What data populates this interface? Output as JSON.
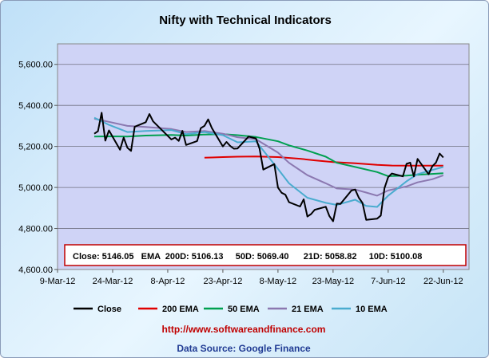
{
  "chart_data": {
    "type": "line",
    "title": "Nifty with Technical Indicators",
    "xlabel": "",
    "ylabel": "",
    "ylim": [
      4600,
      5700
    ],
    "yticks": [
      "4,600.00",
      "4,800.00",
      "5,000.00",
      "5,200.00",
      "5,400.00",
      "5,600.00"
    ],
    "y_tick_values": [
      4600,
      4800,
      5000,
      5200,
      5400,
      5600
    ],
    "xlim": [
      "2012-03-09",
      "2012-06-29"
    ],
    "x_tick_labels": [
      "9-Mar-12",
      "24-Mar-12",
      "8-Apr-12",
      "23-Apr-12",
      "8-May-12",
      "23-May-12",
      "7-Jun-12",
      "22-Jun-12"
    ],
    "x_tick_dates": [
      "2012-03-09",
      "2012-03-24",
      "2012-04-08",
      "2012-04-23",
      "2012-05-08",
      "2012-05-23",
      "2012-06-07",
      "2012-06-22"
    ],
    "gridlines": "horizontal",
    "legend_position": "bottom",
    "series": [
      {
        "name": "Close",
        "color": "#000000",
        "points": [
          [
            "2012-03-19",
            5262
          ],
          [
            "2012-03-20",
            5274
          ],
          [
            "2012-03-21",
            5364
          ],
          [
            "2012-03-22",
            5228
          ],
          [
            "2012-03-23",
            5278
          ],
          [
            "2012-03-26",
            5184
          ],
          [
            "2012-03-27",
            5243
          ],
          [
            "2012-03-28",
            5194
          ],
          [
            "2012-03-29",
            5178
          ],
          [
            "2012-03-30",
            5296
          ],
          [
            "2012-04-02",
            5318
          ],
          [
            "2012-04-03",
            5358
          ],
          [
            "2012-04-04",
            5322
          ],
          [
            "2012-04-09",
            5234
          ],
          [
            "2012-04-10",
            5243
          ],
          [
            "2012-04-11",
            5227
          ],
          [
            "2012-04-12",
            5276
          ],
          [
            "2012-04-13",
            5207
          ],
          [
            "2012-04-16",
            5226
          ],
          [
            "2012-04-17",
            5289
          ],
          [
            "2012-04-18",
            5300
          ],
          [
            "2012-04-19",
            5332
          ],
          [
            "2012-04-20",
            5290
          ],
          [
            "2012-04-23",
            5200
          ],
          [
            "2012-04-24",
            5222
          ],
          [
            "2012-04-25",
            5202
          ],
          [
            "2012-04-26",
            5189
          ],
          [
            "2012-04-27",
            5190
          ],
          [
            "2012-04-30",
            5248
          ],
          [
            "2012-05-02",
            5239
          ],
          [
            "2012-05-03",
            5188
          ],
          [
            "2012-05-04",
            5087
          ],
          [
            "2012-05-07",
            5114
          ],
          [
            "2012-05-08",
            4999
          ],
          [
            "2012-05-09",
            4974
          ],
          [
            "2012-05-10",
            4965
          ],
          [
            "2012-05-11",
            4928
          ],
          [
            "2012-05-14",
            4907
          ],
          [
            "2012-05-15",
            4942
          ],
          [
            "2012-05-16",
            4858
          ],
          [
            "2012-05-17",
            4870
          ],
          [
            "2012-05-18",
            4891
          ],
          [
            "2012-05-21",
            4906
          ],
          [
            "2012-05-22",
            4860
          ],
          [
            "2012-05-23",
            4835
          ],
          [
            "2012-05-24",
            4921
          ],
          [
            "2012-05-25",
            4920
          ],
          [
            "2012-05-28",
            4985
          ],
          [
            "2012-05-29",
            4990
          ],
          [
            "2012-05-30",
            4950
          ],
          [
            "2012-05-31",
            4924
          ],
          [
            "2012-06-01",
            4842
          ],
          [
            "2012-06-04",
            4848
          ],
          [
            "2012-06-05",
            4863
          ],
          [
            "2012-06-06",
            4997
          ],
          [
            "2012-06-07",
            5050
          ],
          [
            "2012-06-08",
            5068
          ],
          [
            "2012-06-11",
            5054
          ],
          [
            "2012-06-12",
            5115
          ],
          [
            "2012-06-13",
            5121
          ],
          [
            "2012-06-14",
            5054
          ],
          [
            "2012-06-15",
            5139
          ],
          [
            "2012-06-18",
            5064
          ],
          [
            "2012-06-19",
            5103
          ],
          [
            "2012-06-20",
            5121
          ],
          [
            "2012-06-21",
            5165
          ],
          [
            "2012-06-22",
            5146
          ]
        ]
      },
      {
        "name": "200 EMA",
        "color": "#e00000",
        "points": [
          [
            "2012-04-18",
            5145
          ],
          [
            "2012-04-20",
            5146
          ],
          [
            "2012-04-23",
            5148
          ],
          [
            "2012-04-27",
            5150
          ],
          [
            "2012-05-02",
            5151
          ],
          [
            "2012-05-04",
            5150
          ],
          [
            "2012-05-08",
            5148
          ],
          [
            "2012-05-14",
            5140
          ],
          [
            "2012-05-18",
            5132
          ],
          [
            "2012-05-23",
            5124
          ],
          [
            "2012-05-29",
            5118
          ],
          [
            "2012-06-04",
            5110
          ],
          [
            "2012-06-08",
            5107
          ],
          [
            "2012-06-13",
            5106
          ],
          [
            "2012-06-18",
            5106
          ],
          [
            "2012-06-22",
            5106
          ]
        ]
      },
      {
        "name": "50 EMA",
        "color": "#00a050",
        "points": [
          [
            "2012-03-19",
            5248
          ],
          [
            "2012-03-23",
            5249
          ],
          [
            "2012-03-28",
            5248
          ],
          [
            "2012-04-02",
            5253
          ],
          [
            "2012-04-09",
            5256
          ],
          [
            "2012-04-13",
            5253
          ],
          [
            "2012-04-18",
            5258
          ],
          [
            "2012-04-23",
            5260
          ],
          [
            "2012-04-27",
            5255
          ],
          [
            "2012-05-02",
            5246
          ],
          [
            "2012-05-08",
            5225
          ],
          [
            "2012-05-11",
            5205
          ],
          [
            "2012-05-16",
            5180
          ],
          [
            "2012-05-21",
            5150
          ],
          [
            "2012-05-24",
            5120
          ],
          [
            "2012-05-29",
            5100
          ],
          [
            "2012-06-04",
            5075
          ],
          [
            "2012-06-07",
            5055
          ],
          [
            "2012-06-12",
            5058
          ],
          [
            "2012-06-15",
            5062
          ],
          [
            "2012-06-19",
            5066
          ],
          [
            "2012-06-22",
            5069
          ]
        ]
      },
      {
        "name": "21 EMA",
        "color": "#8b78b0",
        "points": [
          [
            "2012-03-19",
            5335
          ],
          [
            "2012-03-23",
            5320
          ],
          [
            "2012-03-28",
            5300
          ],
          [
            "2012-04-02",
            5295
          ],
          [
            "2012-04-09",
            5285
          ],
          [
            "2012-04-13",
            5270
          ],
          [
            "2012-04-18",
            5275
          ],
          [
            "2012-04-23",
            5262
          ],
          [
            "2012-04-27",
            5245
          ],
          [
            "2012-05-02",
            5235
          ],
          [
            "2012-05-08",
            5170
          ],
          [
            "2012-05-11",
            5120
          ],
          [
            "2012-05-16",
            5060
          ],
          [
            "2012-05-21",
            5020
          ],
          [
            "2012-05-24",
            4995
          ],
          [
            "2012-05-29",
            4990
          ],
          [
            "2012-06-01",
            4975
          ],
          [
            "2012-06-04",
            4960
          ],
          [
            "2012-06-07",
            4985
          ],
          [
            "2012-06-12",
            5005
          ],
          [
            "2012-06-15",
            5025
          ],
          [
            "2012-06-19",
            5040
          ],
          [
            "2012-06-22",
            5059
          ]
        ]
      },
      {
        "name": "10 EMA",
        "color": "#4aaccf",
        "points": [
          [
            "2012-03-19",
            5340
          ],
          [
            "2012-03-23",
            5305
          ],
          [
            "2012-03-28",
            5270
          ],
          [
            "2012-04-02",
            5275
          ],
          [
            "2012-04-09",
            5280
          ],
          [
            "2012-04-13",
            5260
          ],
          [
            "2012-04-18",
            5270
          ],
          [
            "2012-04-23",
            5255
          ],
          [
            "2012-04-27",
            5220
          ],
          [
            "2012-05-02",
            5225
          ],
          [
            "2012-05-04",
            5180
          ],
          [
            "2012-05-08",
            5090
          ],
          [
            "2012-05-11",
            5020
          ],
          [
            "2012-05-16",
            4950
          ],
          [
            "2012-05-21",
            4925
          ],
          [
            "2012-05-24",
            4915
          ],
          [
            "2012-05-29",
            4940
          ],
          [
            "2012-06-01",
            4910
          ],
          [
            "2012-06-04",
            4905
          ],
          [
            "2012-06-07",
            4960
          ],
          [
            "2012-06-12",
            5030
          ],
          [
            "2012-06-15",
            5065
          ],
          [
            "2012-06-19",
            5085
          ],
          [
            "2012-06-22",
            5100
          ]
        ]
      }
    ],
    "summary_box": "Close: 5146.05   EMA  200D: 5106.13     50D: 5069.40      21D: 5058.82     10D: 5100.08",
    "footer_url": "http://www.softwareandfinance.com",
    "footer_source": "Data Source: Google Finance"
  }
}
